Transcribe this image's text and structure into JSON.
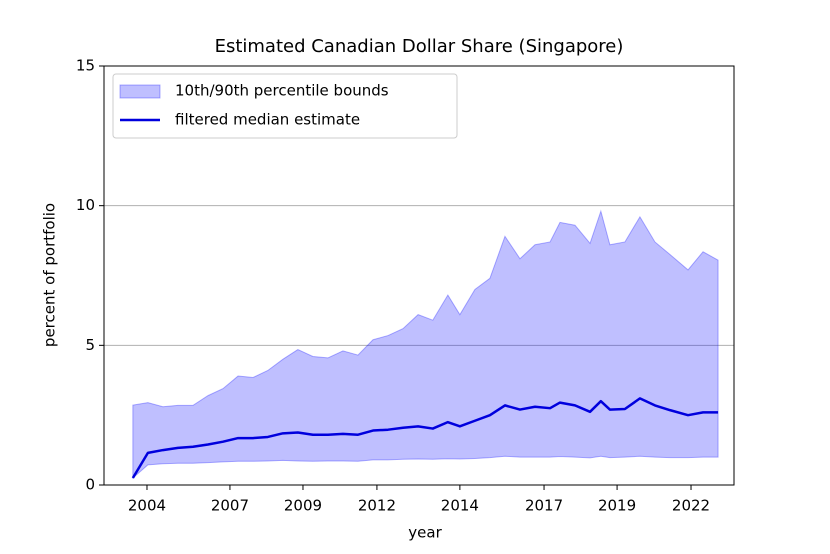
{
  "chart_data": {
    "type": "line",
    "title": "Estimated Canadian Dollar Share (Singapore)",
    "xlabel": "year",
    "ylabel": "percent of portfolio",
    "x": [
      2003.53,
      2004.03,
      2004.53,
      2005.03,
      2005.53,
      2006.03,
      2006.53,
      2007.03,
      2007.53,
      2008.02,
      2008.52,
      2009.02,
      2009.52,
      2010.02,
      2010.52,
      2011.02,
      2011.52,
      2012.02,
      2012.52,
      2013.02,
      2013.51,
      2014.01,
      2014.41,
      2014.91,
      2015.41,
      2015.91,
      2016.41,
      2016.91,
      2017.41,
      2017.74,
      2018.24,
      2018.74,
      2019.1,
      2019.4,
      2019.9,
      2020.4,
      2020.9,
      2021.4,
      2022.0,
      2022.5,
      2023.0
    ],
    "series": [
      {
        "name": "10th/90th percentile bounds",
        "color": "#0000ff",
        "kind": "band",
        "lower": [
          0.25,
          0.72,
          0.76,
          0.78,
          0.78,
          0.8,
          0.83,
          0.85,
          0.85,
          0.86,
          0.88,
          0.86,
          0.85,
          0.86,
          0.86,
          0.85,
          0.9,
          0.9,
          0.92,
          0.93,
          0.92,
          0.94,
          0.93,
          0.95,
          0.98,
          1.03,
          1.0,
          1.0,
          1.0,
          1.02,
          1.0,
          0.97,
          1.03,
          0.98,
          1.0,
          1.03,
          1.0,
          0.98,
          0.98,
          1.0,
          1.0
        ],
        "upper": [
          2.86,
          2.95,
          2.8,
          2.85,
          2.85,
          3.2,
          3.45,
          3.9,
          3.85,
          4.1,
          4.5,
          4.85,
          4.6,
          4.55,
          4.8,
          4.65,
          5.2,
          5.35,
          5.6,
          6.1,
          5.9,
          6.8,
          6.1,
          7.0,
          7.4,
          8.9,
          8.1,
          8.6,
          8.7,
          9.4,
          9.3,
          8.65,
          9.8,
          8.6,
          8.7,
          9.6,
          8.7,
          8.25,
          7.7,
          8.35,
          8.05
        ]
      },
      {
        "name": "filtered median estimate",
        "color": "#0000dd",
        "values": [
          0.25,
          1.15,
          1.25,
          1.33,
          1.37,
          1.45,
          1.55,
          1.68,
          1.68,
          1.72,
          1.85,
          1.88,
          1.8,
          1.8,
          1.83,
          1.8,
          1.95,
          1.98,
          2.05,
          2.1,
          2.02,
          2.25,
          2.1,
          2.3,
          2.5,
          2.85,
          2.7,
          2.8,
          2.75,
          2.95,
          2.85,
          2.62,
          3.0,
          2.7,
          2.72,
          3.1,
          2.85,
          2.68,
          2.5,
          2.6,
          2.6
        ]
      }
    ],
    "xlim": [
      2002.57,
      2023.53
    ],
    "xticks": [
      {
        "value": 2004,
        "label": "2004"
      },
      {
        "value": 2006.76,
        "label": "2007"
      },
      {
        "value": 2009.19,
        "label": "2009"
      },
      {
        "value": 2011.65,
        "label": "2012"
      },
      {
        "value": 2014.41,
        "label": "2014"
      },
      {
        "value": 2017.21,
        "label": "2017"
      },
      {
        "value": 2019.64,
        "label": "2019"
      },
      {
        "value": 2022.1,
        "label": "2022"
      }
    ],
    "ylim": [
      0,
      15
    ],
    "yticks": [
      0,
      5,
      10,
      15
    ],
    "grid": "y",
    "legend": "upper left"
  }
}
